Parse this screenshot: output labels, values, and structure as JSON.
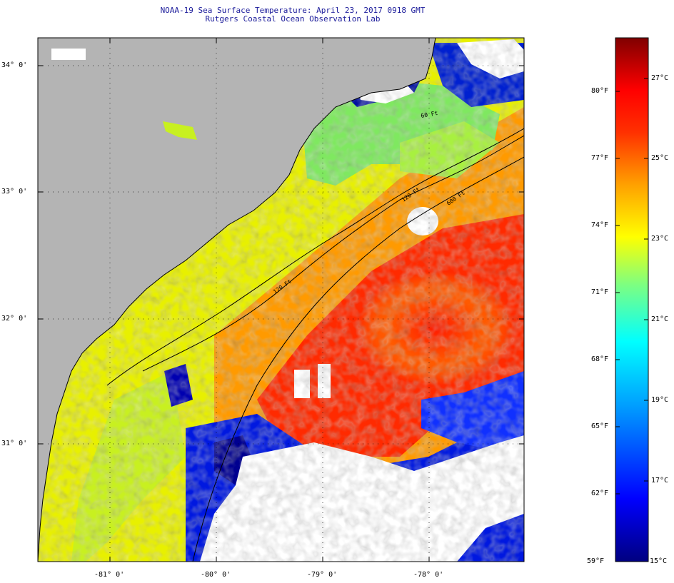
{
  "title": "NOAA-19 Sea Surface Temperature:  April 23, 2017 0918 GMT",
  "subtitle": "Rutgers Coastal Ocean Observation Lab",
  "latitude_labels": [
    "34° 0'",
    "33° 0'",
    "32° 0'",
    "31° 0'"
  ],
  "longitude_labels": [
    "-81° 0'",
    "-80° 0'",
    "-79° 0'",
    "-78° 0'"
  ],
  "contour_labels": [
    "120 Ft",
    "600 Ft",
    "120 Ft",
    "60 Ft"
  ],
  "colorbar": {
    "fahrenheit": [
      "80°F",
      "77°F",
      "74°F",
      "71°F",
      "68°F",
      "65°F",
      "62°F",
      "59°F"
    ],
    "celsius": [
      "27°C",
      "25°C",
      "23°C",
      "21°C",
      "19°C",
      "17°C",
      "15°C"
    ],
    "min_c": 15,
    "max_c": 28,
    "colors": [
      "#000080",
      "#0000ff",
      "#00bfff",
      "#00ffff",
      "#7fff7f",
      "#ffff00",
      "#ff8000",
      "#ff0000",
      "#800000"
    ]
  },
  "map_colors": {
    "land": "#b4b4b4",
    "cloud": "#ffffff"
  }
}
